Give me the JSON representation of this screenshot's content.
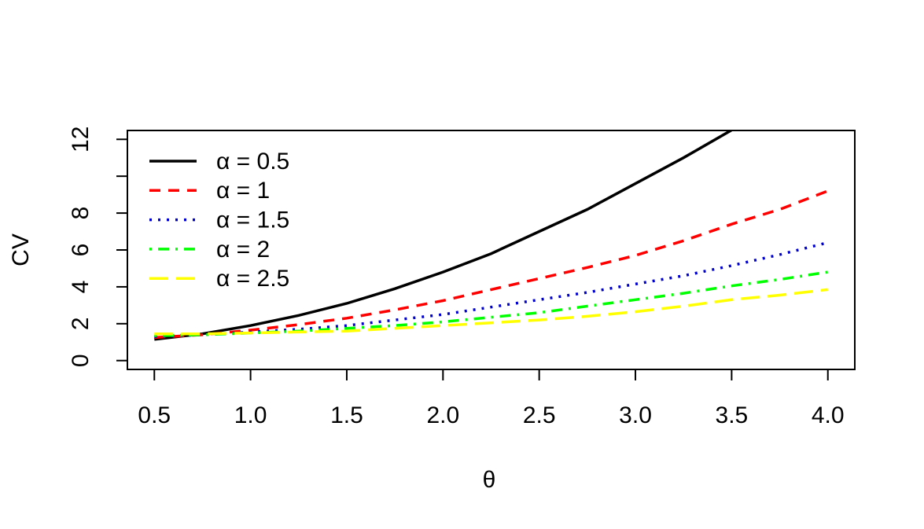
{
  "chart_data": {
    "type": "line",
    "xlabel": "θ",
    "ylabel": "CV",
    "x": [
      0.5,
      0.75,
      1.0,
      1.25,
      1.5,
      1.75,
      2.0,
      2.25,
      2.5,
      2.75,
      3.0,
      3.25,
      3.5,
      3.75,
      4.0
    ],
    "series": [
      {
        "name": "α = 0.5",
        "color": "#000000",
        "linetype": "solid",
        "values": [
          1.15,
          1.45,
          1.9,
          2.45,
          3.1,
          3.9,
          4.8,
          5.8,
          7.0,
          8.2,
          9.6,
          11.0,
          12.5,
          null,
          null
        ]
      },
      {
        "name": "α = 1",
        "color": "#ff0000",
        "linetype": "dashed",
        "values": [
          1.25,
          1.4,
          1.65,
          1.95,
          2.3,
          2.75,
          3.25,
          3.85,
          4.45,
          5.05,
          5.7,
          6.5,
          7.4,
          8.2,
          9.2
        ]
      },
      {
        "name": "α = 1.5",
        "color": "#0000cd",
        "linetype": "dotted",
        "values": [
          1.3,
          1.4,
          1.55,
          1.7,
          1.9,
          2.2,
          2.5,
          2.9,
          3.3,
          3.7,
          4.15,
          4.6,
          5.15,
          5.75,
          6.4
        ]
      },
      {
        "name": "α = 2",
        "color": "#00ff00",
        "linetype": "dotdash",
        "values": [
          1.35,
          1.4,
          1.5,
          1.6,
          1.75,
          1.9,
          2.1,
          2.35,
          2.6,
          2.95,
          3.3,
          3.65,
          4.05,
          4.4,
          4.8
        ]
      },
      {
        "name": "α = 2.5",
        "color": "#ffff00",
        "linetype": "longdash",
        "values": [
          1.45,
          1.45,
          1.5,
          1.55,
          1.6,
          1.75,
          1.9,
          2.05,
          2.2,
          2.4,
          2.65,
          2.95,
          3.3,
          3.55,
          3.85
        ]
      }
    ],
    "xlim": [
      0.36,
      4.14
    ],
    "ylim": [
      -0.48,
      12.48
    ],
    "xticks": [
      {
        "value": 0.5,
        "label": "0.5"
      },
      {
        "value": 1.0,
        "label": "1.0"
      },
      {
        "value": 1.5,
        "label": "1.5"
      },
      {
        "value": 2.0,
        "label": "2.0"
      },
      {
        "value": 2.5,
        "label": "2.5"
      },
      {
        "value": 3.0,
        "label": "3.0"
      },
      {
        "value": 3.5,
        "label": "3.5"
      },
      {
        "value": 4.0,
        "label": "4.0"
      }
    ],
    "yticks": [
      0,
      2,
      4,
      6,
      8,
      12
    ],
    "y_unlabeled_ticks": [
      10
    ],
    "legend": "top-left",
    "grid": false
  }
}
